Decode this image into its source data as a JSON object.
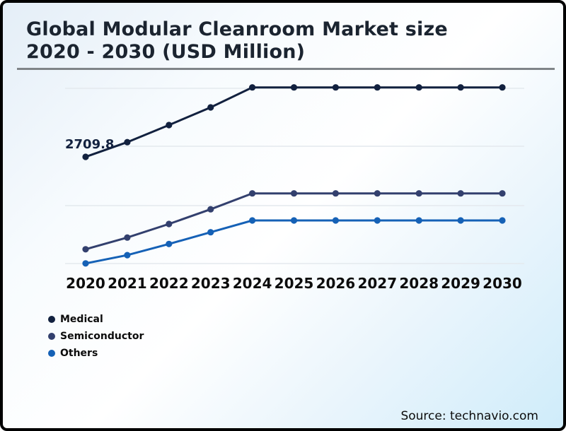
{
  "header": {
    "title_line1": "Global Modular Cleanroom Market size",
    "title_line2": "2020 - 2030 (USD Million)"
  },
  "footer": {
    "source": "Source: technavio.com"
  },
  "colors": {
    "title": "#1b2430",
    "divider": "#7f8488",
    "grid": "#e4e9ee",
    "background_accent": "#cfecfa",
    "medical": "#12213f",
    "semiconductor": "#33406e",
    "others": "#1561b6"
  },
  "chart_data": {
    "type": "line",
    "title": "Global Modular Cleanroom Market size 2020 - 2030 (USD Million)",
    "unit": "USD Million",
    "categories": [
      "2020",
      "2021",
      "2022",
      "2023",
      "2024",
      "2025",
      "2026",
      "2027",
      "2028",
      "2029",
      "2030"
    ],
    "series": [
      {
        "name": "Medical",
        "color": "#12213f",
        "values": [
          2709.8,
          2960,
          3250,
          3550,
          3890,
          3890,
          3890,
          3890,
          3890,
          3890,
          3890
        ]
      },
      {
        "name": "Semiconductor",
        "color": "#33406e",
        "values": [
          1140,
          1340,
          1570,
          1820,
          2090,
          2090,
          2090,
          2090,
          2090,
          2090,
          2090
        ]
      },
      {
        "name": "Others",
        "color": "#1561b6",
        "values": [
          900,
          1040,
          1230,
          1430,
          1630,
          1630,
          1630,
          1630,
          1630,
          1630,
          1630
        ]
      }
    ],
    "annotations": [
      {
        "series": "Medical",
        "category": "2020",
        "label": "2709.8"
      }
    ],
    "xlabel": "",
    "ylabel": "",
    "y_axis_visible": false,
    "grid": "horizontal",
    "gridline_count": 4,
    "ylim_estimate": [
      700,
      4100
    ],
    "legend_position": "bottom-left"
  }
}
